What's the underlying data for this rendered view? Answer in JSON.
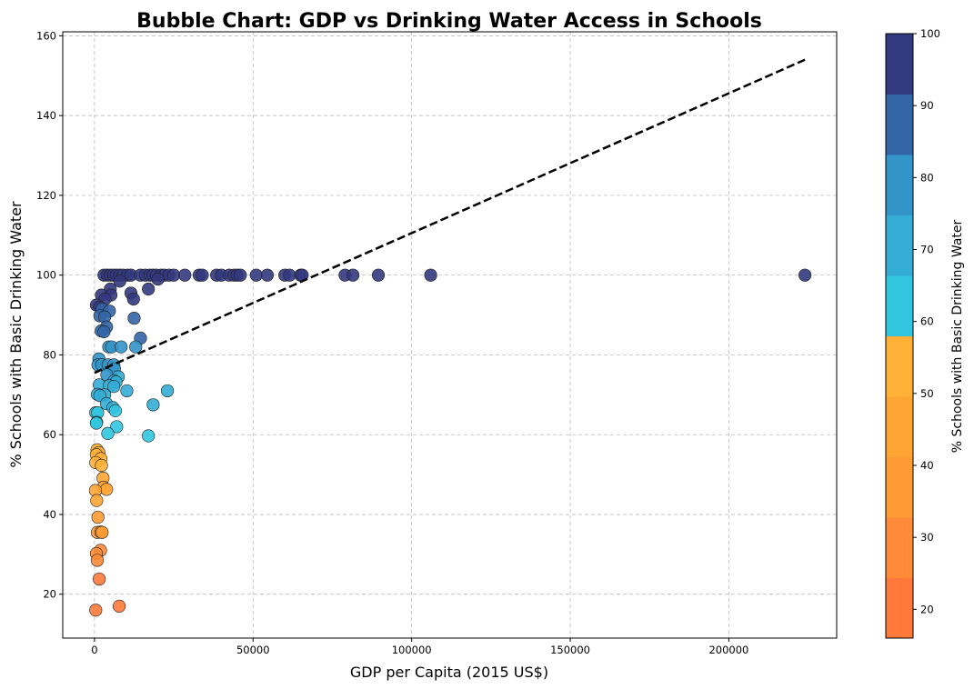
{
  "chart_data": {
    "type": "scatter",
    "title": "Bubble Chart: GDP vs Drinking Water Access in Schools",
    "xlabel": "GDP per Capita (2015 US$)",
    "ylabel": "% Schools with Basic Drinking Water",
    "xlim": [
      -10000,
      234000
    ],
    "ylim": [
      9,
      161
    ],
    "xticks": [
      0,
      50000,
      100000,
      150000,
      200000
    ],
    "xtick_labels": [
      "0",
      "50000",
      "100000",
      "150000",
      "200000"
    ],
    "yticks": [
      20,
      40,
      60,
      80,
      100,
      120,
      140,
      160
    ],
    "ytick_labels": [
      "20",
      "40",
      "60",
      "80",
      "100",
      "120",
      "140",
      "160"
    ],
    "grid": true,
    "colorbar": {
      "label": "% Schools with Basic Drinking Water",
      "range": [
        16,
        100
      ],
      "ticks": [
        20,
        30,
        40,
        50,
        60,
        70,
        80,
        90,
        100
      ],
      "tick_labels": [
        "20",
        "30",
        "40",
        "50",
        "60",
        "70",
        "80",
        "90",
        "100"
      ],
      "colors": [
        "#FF7A3A",
        "#FF8B38",
        "#FF9B34",
        "#FFA534",
        "#FFB036",
        "#31C5DF",
        "#33ADD6",
        "#3294C9",
        "#3365A6",
        "#33397E"
      ]
    },
    "trendline": {
      "x": [
        0,
        224000
      ],
      "y": [
        75.5,
        154
      ]
    },
    "points": [
      {
        "x": 3000,
        "y": 100
      },
      {
        "x": 4000,
        "y": 100
      },
      {
        "x": 5000,
        "y": 100
      },
      {
        "x": 6000,
        "y": 100
      },
      {
        "x": 7000,
        "y": 100
      },
      {
        "x": 8000,
        "y": 100
      },
      {
        "x": 9000,
        "y": 100
      },
      {
        "x": 10500,
        "y": 100
      },
      {
        "x": 11500,
        "y": 100
      },
      {
        "x": 14500,
        "y": 100
      },
      {
        "x": 16000,
        "y": 100
      },
      {
        "x": 17500,
        "y": 100
      },
      {
        "x": 18500,
        "y": 100
      },
      {
        "x": 19500,
        "y": 100
      },
      {
        "x": 21000,
        "y": 100
      },
      {
        "x": 22000,
        "y": 100
      },
      {
        "x": 23500,
        "y": 100
      },
      {
        "x": 25000,
        "y": 100
      },
      {
        "x": 28500,
        "y": 100
      },
      {
        "x": 33000,
        "y": 100
      },
      {
        "x": 34000,
        "y": 100
      },
      {
        "x": 38500,
        "y": 100
      },
      {
        "x": 40000,
        "y": 100
      },
      {
        "x": 42500,
        "y": 100
      },
      {
        "x": 44000,
        "y": 100
      },
      {
        "x": 45000,
        "y": 100
      },
      {
        "x": 46000,
        "y": 100
      },
      {
        "x": 51000,
        "y": 100
      },
      {
        "x": 54500,
        "y": 100
      },
      {
        "x": 60000,
        "y": 100
      },
      {
        "x": 61500,
        "y": 100
      },
      {
        "x": 65000,
        "y": 100
      },
      {
        "x": 65500,
        "y": 100
      },
      {
        "x": 79000,
        "y": 100
      },
      {
        "x": 81500,
        "y": 100
      },
      {
        "x": 89500,
        "y": 100
      },
      {
        "x": 106000,
        "y": 100
      },
      {
        "x": 224000,
        "y": 100
      },
      {
        "x": 8000,
        "y": 98.5
      },
      {
        "x": 20000,
        "y": 99
      },
      {
        "x": 5000,
        "y": 96.5
      },
      {
        "x": 17000,
        "y": 96.5
      },
      {
        "x": 11500,
        "y": 95.5
      },
      {
        "x": 2200,
        "y": 95
      },
      {
        "x": 5200,
        "y": 95
      },
      {
        "x": 3300,
        "y": 94
      },
      {
        "x": 12300,
        "y": 94
      },
      {
        "x": 600,
        "y": 92.5
      },
      {
        "x": 1600,
        "y": 92
      },
      {
        "x": 2400,
        "y": 91.5
      },
      {
        "x": 4700,
        "y": 91
      },
      {
        "x": 1700,
        "y": 89.8
      },
      {
        "x": 3200,
        "y": 89.5
      },
      {
        "x": 12500,
        "y": 89.2
      },
      {
        "x": 3800,
        "y": 87
      },
      {
        "x": 2100,
        "y": 86
      },
      {
        "x": 3000,
        "y": 85.8
      },
      {
        "x": 14500,
        "y": 84.2
      },
      {
        "x": 4500,
        "y": 82
      },
      {
        "x": 5400,
        "y": 82
      },
      {
        "x": 8400,
        "y": 82
      },
      {
        "x": 13000,
        "y": 82
      },
      {
        "x": 1400,
        "y": 79
      },
      {
        "x": 1100,
        "y": 77.5
      },
      {
        "x": 2300,
        "y": 77.5
      },
      {
        "x": 4300,
        "y": 77.5
      },
      {
        "x": 6100,
        "y": 77.5
      },
      {
        "x": 6300,
        "y": 76.5
      },
      {
        "x": 3900,
        "y": 75
      },
      {
        "x": 7500,
        "y": 74.5
      },
      {
        "x": 6200,
        "y": 73.5
      },
      {
        "x": 6800,
        "y": 73.2
      },
      {
        "x": 1500,
        "y": 72.5
      },
      {
        "x": 4700,
        "y": 72.3
      },
      {
        "x": 6100,
        "y": 72.1
      },
      {
        "x": 10200,
        "y": 71
      },
      {
        "x": 23000,
        "y": 71
      },
      {
        "x": 900,
        "y": 70.1
      },
      {
        "x": 3200,
        "y": 70
      },
      {
        "x": 1700,
        "y": 69.8
      },
      {
        "x": 3800,
        "y": 67.8
      },
      {
        "x": 18500,
        "y": 67.5
      },
      {
        "x": 5800,
        "y": 66.8
      },
      {
        "x": 6600,
        "y": 66
      },
      {
        "x": 400,
        "y": 65.5
      },
      {
        "x": 1000,
        "y": 65.5
      },
      {
        "x": 700,
        "y": 63.1
      },
      {
        "x": 600,
        "y": 62.9
      },
      {
        "x": 7000,
        "y": 62
      },
      {
        "x": 4200,
        "y": 60.3
      },
      {
        "x": 17000,
        "y": 59.7
      },
      {
        "x": 800,
        "y": 56.2
      },
      {
        "x": 1400,
        "y": 55.5
      },
      {
        "x": 600,
        "y": 55
      },
      {
        "x": 2000,
        "y": 54
      },
      {
        "x": 400,
        "y": 53
      },
      {
        "x": 2200,
        "y": 52.3
      },
      {
        "x": 2700,
        "y": 49.1
      },
      {
        "x": 2800,
        "y": 46.8
      },
      {
        "x": 3800,
        "y": 46.3
      },
      {
        "x": 300,
        "y": 46
      },
      {
        "x": 700,
        "y": 43.5
      },
      {
        "x": 1100,
        "y": 39.3
      },
      {
        "x": 900,
        "y": 35.5
      },
      {
        "x": 2000,
        "y": 35.6
      },
      {
        "x": 2400,
        "y": 35.5
      },
      {
        "x": 1900,
        "y": 31
      },
      {
        "x": 600,
        "y": 30.2
      },
      {
        "x": 900,
        "y": 28.5
      },
      {
        "x": 1500,
        "y": 23.8
      },
      {
        "x": 7800,
        "y": 17
      },
      {
        "x": 400,
        "y": 16
      }
    ]
  }
}
